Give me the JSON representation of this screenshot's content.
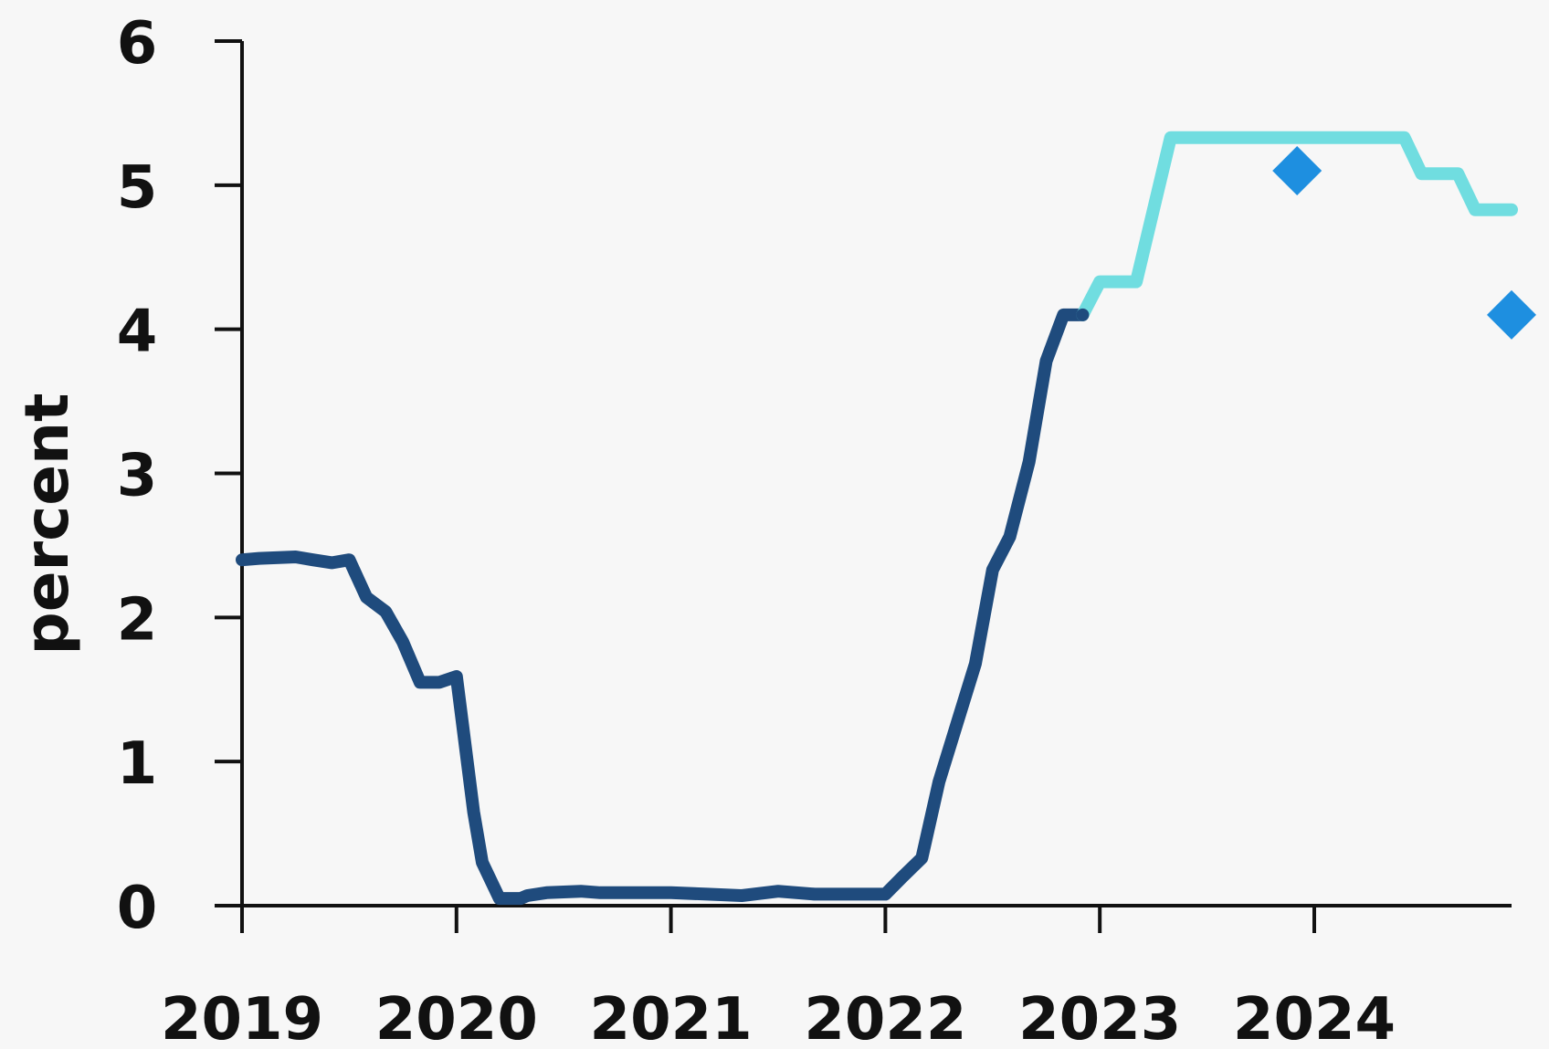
{
  "chart_data": {
    "type": "line",
    "title": "",
    "xlabel": "",
    "ylabel": "percent",
    "xlim": [
      2019.0,
      2024.92
    ],
    "ylim": [
      0,
      6
    ],
    "x_ticks": [
      2019,
      2020,
      2021,
      2022,
      2023,
      2024
    ],
    "x_tick_labels": [
      "2019",
      "2020",
      "2021",
      "2022",
      "2023",
      "2024"
    ],
    "y_ticks": [
      0,
      1,
      2,
      3,
      4,
      5,
      6
    ],
    "y_tick_labels": [
      "0",
      "1",
      "2",
      "3",
      "4",
      "5",
      "6"
    ],
    "grid": false,
    "legend": "none",
    "colors": {
      "actual": "#1f4b7d",
      "projection": "#70dde0",
      "markers": "#1e8fe0",
      "axis": "#111111",
      "background": "#f7f7f7"
    },
    "series": [
      {
        "style": "solid-dark",
        "x": [
          2019.0,
          2019.08,
          2019.25,
          2019.33,
          2019.42,
          2019.5,
          2019.58,
          2019.67,
          2019.75,
          2019.83,
          2019.92,
          2020.0,
          2020.08,
          2020.12,
          2020.2,
          2020.25,
          2020.3,
          2020.33,
          2020.42,
          2020.58,
          2020.67,
          2021.0,
          2021.17,
          2021.33,
          2021.5,
          2021.67,
          2022.0,
          2022.08,
          2022.17,
          2022.25,
          2022.42,
          2022.5,
          2022.58,
          2022.67,
          2022.75,
          2022.83,
          2022.92
        ],
        "y": [
          2.4,
          2.41,
          2.42,
          2.4,
          2.38,
          2.4,
          2.14,
          2.04,
          1.83,
          1.55,
          1.55,
          1.59,
          0.65,
          0.3,
          0.05,
          0.05,
          0.05,
          0.07,
          0.09,
          0.1,
          0.09,
          0.09,
          0.08,
          0.07,
          0.1,
          0.08,
          0.08,
          0.2,
          0.33,
          0.86,
          1.68,
          2.33,
          2.56,
          3.08,
          3.78,
          4.1,
          4.1
        ]
      },
      {
        "style": "projection-light",
        "x": [
          2022.92,
          2023.0,
          2023.08,
          2023.17,
          2023.33,
          2024.42,
          2024.5,
          2024.67,
          2024.75,
          2024.92
        ],
        "y": [
          4.1,
          4.33,
          4.33,
          4.33,
          5.33,
          5.33,
          5.08,
          5.08,
          4.83,
          4.83
        ]
      }
    ],
    "markers": [
      {
        "x": 2023.92,
        "y": 5.1
      },
      {
        "x": 2024.92,
        "y": 4.1
      }
    ]
  }
}
